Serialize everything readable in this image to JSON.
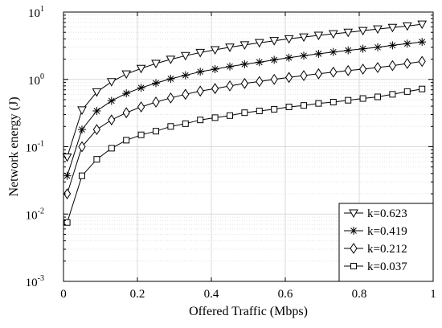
{
  "chart_data": {
    "type": "line",
    "title": "",
    "xlabel": "Offered Traffic (Mbps)",
    "ylabel": "Network energy (J)",
    "xlim": [
      0,
      1
    ],
    "ylim": [
      0.001,
      10
    ],
    "yscale": "log",
    "grid": true,
    "legend_position": "bottom-right",
    "x_ticks": [
      {
        "value": 0,
        "label": "0"
      },
      {
        "value": 0.2,
        "label": "0.2"
      },
      {
        "value": 0.4,
        "label": "0.4"
      },
      {
        "value": 0.6,
        "label": "0.6"
      },
      {
        "value": 0.8,
        "label": "0.8"
      },
      {
        "value": 1,
        "label": "1"
      }
    ],
    "y_ticks": [
      {
        "value": 0.001,
        "base": "10",
        "exp": "-3"
      },
      {
        "value": 0.01,
        "base": "10",
        "exp": "-2"
      },
      {
        "value": 0.1,
        "base": "10",
        "exp": "-1"
      },
      {
        "value": 1,
        "base": "10",
        "exp": "0"
      },
      {
        "value": 10,
        "base": "10",
        "exp": "1"
      }
    ],
    "x": [
      0.01,
      0.05,
      0.09,
      0.13,
      0.17,
      0.21,
      0.25,
      0.29,
      0.33,
      0.37,
      0.41,
      0.45,
      0.49,
      0.53,
      0.57,
      0.61,
      0.65,
      0.69,
      0.73,
      0.77,
      0.81,
      0.85,
      0.89,
      0.93,
      0.97
    ],
    "series": [
      {
        "name": "k=0.623",
        "marker": "triangle-down",
        "values": [
          0.07,
          0.35,
          0.65,
          0.92,
          1.2,
          1.45,
          1.72,
          1.98,
          2.25,
          2.5,
          2.75,
          3.0,
          3.25,
          3.5,
          3.75,
          4.0,
          4.25,
          4.5,
          4.75,
          5.0,
          5.3,
          5.6,
          5.9,
          6.2,
          6.6
        ]
      },
      {
        "name": "k=0.419",
        "marker": "star",
        "values": [
          0.037,
          0.18,
          0.34,
          0.48,
          0.62,
          0.75,
          0.88,
          1.02,
          1.15,
          1.3,
          1.42,
          1.55,
          1.68,
          1.8,
          1.95,
          2.1,
          2.25,
          2.4,
          2.55,
          2.7,
          2.85,
          3.0,
          3.2,
          3.4,
          3.6
        ]
      },
      {
        "name": "k=0.212",
        "marker": "diamond",
        "values": [
          0.02,
          0.1,
          0.18,
          0.25,
          0.32,
          0.39,
          0.46,
          0.53,
          0.6,
          0.67,
          0.73,
          0.8,
          0.87,
          0.93,
          1.0,
          1.07,
          1.14,
          1.21,
          1.28,
          1.35,
          1.42,
          1.5,
          1.6,
          1.72,
          1.85
        ]
      },
      {
        "name": "k=0.037",
        "marker": "square",
        "values": [
          0.0075,
          0.037,
          0.065,
          0.095,
          0.125,
          0.15,
          0.17,
          0.2,
          0.22,
          0.25,
          0.27,
          0.29,
          0.32,
          0.34,
          0.36,
          0.39,
          0.41,
          0.44,
          0.46,
          0.49,
          0.52,
          0.55,
          0.6,
          0.66,
          0.72
        ]
      }
    ]
  }
}
